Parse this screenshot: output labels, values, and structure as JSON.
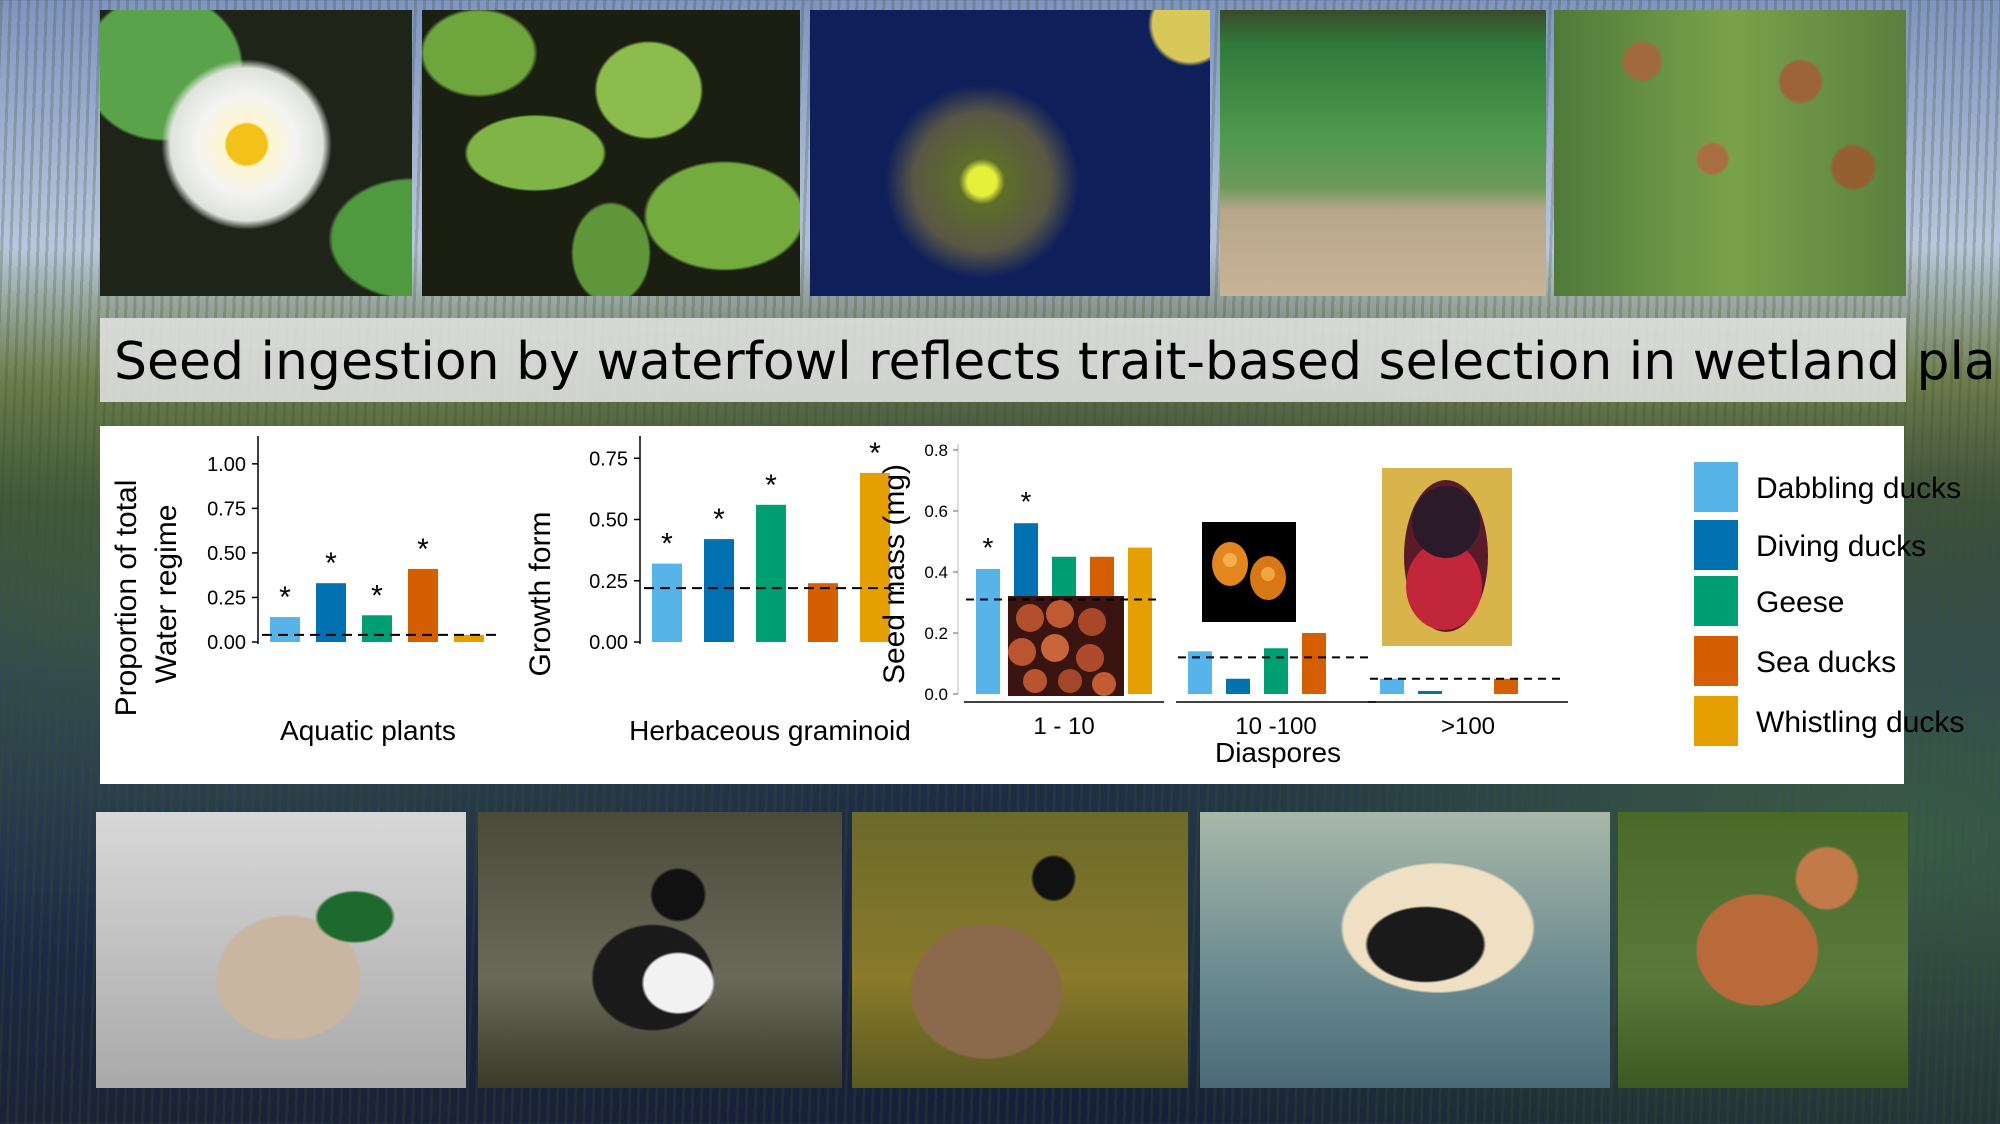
{
  "title": "Seed ingestion by waterfowl reflects trait-based selection in wetland plants",
  "colors": {
    "dabbling": "#56B4E9",
    "diving": "#0072B2",
    "geese": "#009E73",
    "sea": "#D55E00",
    "whistling": "#E69F00"
  },
  "top_photos": [
    "white-water-lily-photo",
    "floating-leaved-pondweed-photo",
    "submerged-aquatic-plant-photo",
    "spike-rush-tuft-photo",
    "rush-flower-heads-photo"
  ],
  "bottom_photos": [
    "mallard-photo",
    "ring-necked-duck-photo",
    "canada-goose-photo",
    "common-eider-photo",
    "whistling-duck-photo"
  ],
  "legend": [
    {
      "label": "Dabbling ducks",
      "color": "#56B4E9"
    },
    {
      "label": "Diving ducks",
      "color": "#0072B2"
    },
    {
      "label": "Geese",
      "color": "#009E73"
    },
    {
      "label": "Sea ducks",
      "color": "#D55E00"
    },
    {
      "label": "Whistling ducks",
      "color": "#E69F00"
    }
  ],
  "shared_ylabel": "Proportion of total",
  "chart_data": [
    {
      "type": "bar",
      "ylabel": "Water regime",
      "xlabel": "Aquatic plants",
      "ylim": [
        0,
        1.1
      ],
      "yticks": [
        "0.00",
        "0.25",
        "0.50",
        "0.75",
        "1.00"
      ],
      "ytick_values": [
        0,
        0.25,
        0.5,
        0.75,
        1.0
      ],
      "series": [
        "Dabbling ducks",
        "Diving ducks",
        "Geese",
        "Sea ducks",
        "Whistling ducks"
      ],
      "values": [
        0.14,
        0.33,
        0.15,
        0.41,
        0.04
      ],
      "significant": [
        "*",
        "*",
        "*",
        "*",
        ""
      ],
      "reference_line": 0.04
    },
    {
      "type": "bar",
      "ylabel": "Growth form",
      "xlabel": "Herbaceous graminoid",
      "ylim": [
        0,
        0.8
      ],
      "yticks": [
        "0.00",
        "0.25",
        "0.50",
        "0.75"
      ],
      "ytick_values": [
        0,
        0.25,
        0.5,
        0.75
      ],
      "series": [
        "Dabbling ducks",
        "Diving ducks",
        "Geese",
        "Sea ducks",
        "Whistling ducks"
      ],
      "values": [
        0.32,
        0.42,
        0.56,
        0.24,
        0.69
      ],
      "significant": [
        "*",
        "*",
        "*",
        "",
        "*"
      ],
      "reference_line": 0.22
    },
    {
      "type": "bar",
      "ylabel": "Seed mass (mg)",
      "xlabel": "Diaspores",
      "ylim": [
        0,
        0.8
      ],
      "yticks": [
        "0.0",
        "0.2",
        "0.4",
        "0.6",
        "0.8"
      ],
      "ytick_values": [
        0,
        0.2,
        0.4,
        0.6,
        0.8
      ],
      "series": [
        "Dabbling ducks",
        "Diving ducks",
        "Geese",
        "Sea ducks",
        "Whistling ducks"
      ],
      "groups": [
        {
          "label": "1 - 10",
          "values": [
            0.41,
            0.56,
            0.45,
            0.45,
            0.48
          ],
          "significant": [
            "*",
            "*",
            "",
            "",
            ""
          ],
          "reference_line": 0.31
        },
        {
          "label": "10 -100",
          "values": [
            0.14,
            0.05,
            0.15,
            0.2,
            0.0
          ],
          "significant": [
            "",
            "",
            "",
            "",
            ""
          ],
          "reference_line": 0.12
        },
        {
          "label": ">100",
          "values": [
            0.05,
            0.01,
            0.0,
            0.05,
            0.0
          ],
          "significant": [
            "",
            "",
            "",
            "",
            ""
          ],
          "reference_line": 0.05
        }
      ]
    }
  ]
}
